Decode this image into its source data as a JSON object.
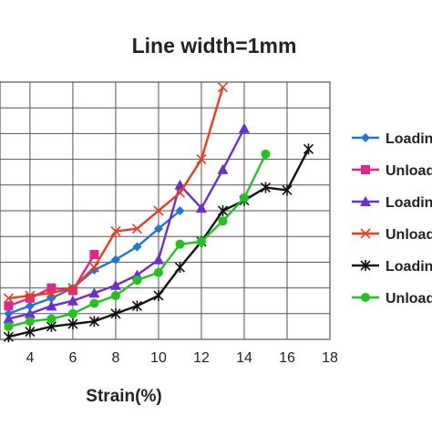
{
  "chart_data": {
    "type": "line",
    "title": "Line width=1mm",
    "xlabel": "Strain(%)",
    "ylabel": "",
    "xlim": [
      2.6,
      18
    ],
    "ylim": [
      0,
      10
    ],
    "x_ticks": [
      4,
      6,
      8,
      10,
      12,
      14,
      16,
      18
    ],
    "x_tick_labels": [
      "4",
      "6",
      "8",
      "10",
      "12",
      "14",
      "16",
      "18"
    ],
    "grid": true,
    "legend_position": "right",
    "series": [
      {
        "name": "Loading",
        "color": "#1f77d4",
        "marker": "diamond",
        "x": [
          3,
          4,
          5,
          6,
          7,
          8,
          9,
          10,
          11
        ],
        "y": [
          1.0,
          1.3,
          1.6,
          2.0,
          2.7,
          3.1,
          3.6,
          4.3,
          5.0
        ]
      },
      {
        "name": "Unloading",
        "color": "#e0268a",
        "marker": "square",
        "x": [
          3,
          4,
          5,
          6,
          7
        ],
        "y": [
          1.3,
          1.6,
          2.0,
          1.9,
          3.3
        ]
      },
      {
        "name": "Loading",
        "color": "#6a2fd0",
        "marker": "triangle",
        "x": [
          3,
          4,
          5,
          6,
          7,
          8,
          9,
          10,
          11,
          12,
          13,
          14
        ],
        "y": [
          0.8,
          1.0,
          1.3,
          1.5,
          1.8,
          2.1,
          2.5,
          3.1,
          6.0,
          5.1,
          6.6,
          8.2
        ]
      },
      {
        "name": "Unloading",
        "color": "#ee3b1e",
        "marker": "x",
        "x": [
          3,
          4,
          5,
          6,
          7,
          8,
          9,
          10,
          11,
          12,
          13
        ],
        "y": [
          1.6,
          1.7,
          1.8,
          2.0,
          2.8,
          4.2,
          4.3,
          5.0,
          5.7,
          7.0,
          9.8
        ]
      },
      {
        "name": "Loading",
        "color": "#111111",
        "marker": "star",
        "x": [
          3,
          4,
          5,
          6,
          7,
          8,
          9,
          10,
          11,
          12,
          13,
          14,
          15,
          16,
          17
        ],
        "y": [
          0.1,
          0.3,
          0.5,
          0.6,
          0.7,
          1.0,
          1.3,
          1.7,
          2.8,
          3.8,
          5.0,
          5.4,
          5.9,
          5.8,
          7.4
        ]
      },
      {
        "name": "Unloading",
        "color": "#22c31e",
        "marker": "circle",
        "x": [
          3,
          4,
          5,
          6,
          7,
          8,
          9,
          10,
          11,
          12,
          13,
          14,
          15
        ],
        "y": [
          0.5,
          0.7,
          0.8,
          1.0,
          1.4,
          1.7,
          2.3,
          2.6,
          3.7,
          3.8,
          4.6,
          5.5,
          7.2
        ]
      }
    ]
  }
}
